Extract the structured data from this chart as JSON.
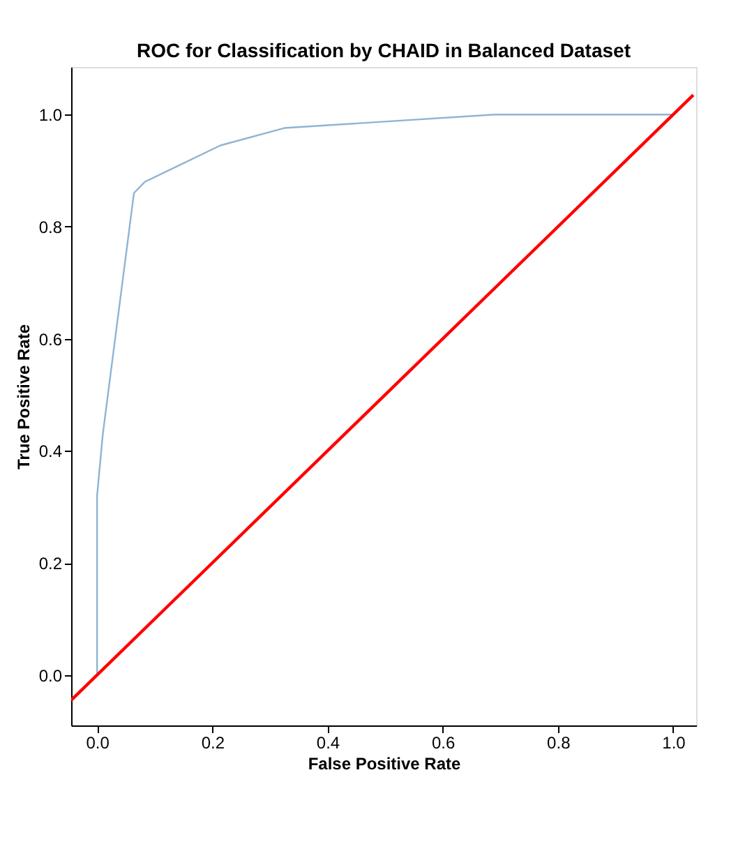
{
  "chart_data": {
    "type": "line",
    "title": "ROC for Classification by CHAID in Balanced Dataset",
    "xlabel": "False Positive Rate",
    "ylabel": "True Positive Rate",
    "xlim": [
      -0.045,
      1.04
    ],
    "ylim": [
      -0.09,
      1.085
    ],
    "xticks": [
      {
        "value": 0,
        "label": "0.0"
      },
      0.2,
      0.4,
      0.6,
      0.8,
      {
        "value": 1,
        "label": "1.0"
      }
    ],
    "yticks": [
      {
        "value": 0,
        "label": "0.0"
      },
      0.2,
      0.4,
      0.6,
      0.8,
      {
        "value": 1,
        "label": "1.0"
      }
    ],
    "grid": false,
    "marker": "none",
    "line_style": "solid",
    "series": [
      {
        "color": "#8fb4d4",
        "x": [
          0,
          0,
          0.01,
          0.064,
          0.083,
          0.214,
          0.325,
          0.69,
          1.0
        ],
        "values": [
          0,
          0.32,
          0.43,
          0.86,
          0.88,
          0.945,
          0.976,
          1.0,
          1.0
        ]
      },
      {
        "color": "#ff0000",
        "x": [
          -0.045,
          1.035
        ],
        "values": [
          -0.045,
          1.035
        ]
      }
    ]
  }
}
